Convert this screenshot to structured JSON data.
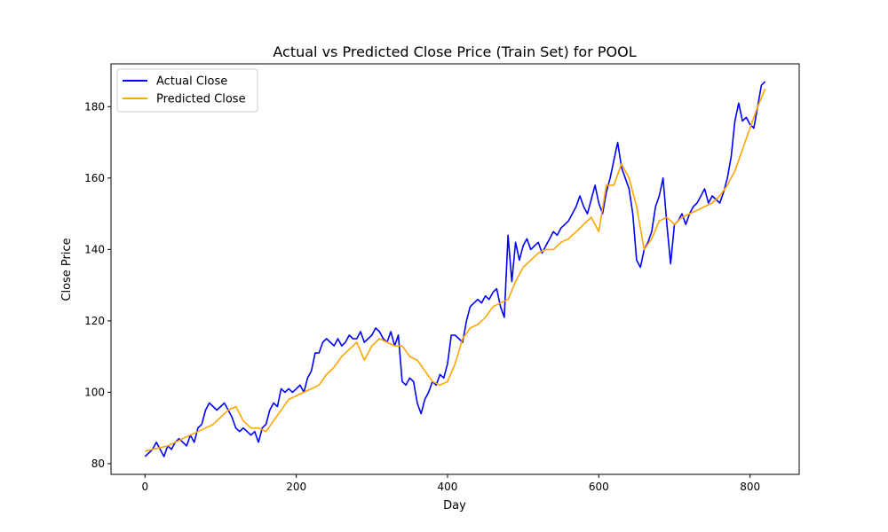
{
  "chart_data": {
    "type": "line",
    "title": "Actual vs Predicted Close Price (Train Set) for POOL",
    "xlabel": "Day",
    "ylabel": "Close Price",
    "xlim": [
      -45,
      865
    ],
    "ylim": [
      77,
      192
    ],
    "xticks": [
      0,
      200,
      400,
      600,
      800
    ],
    "yticks": [
      80,
      100,
      120,
      140,
      160,
      180
    ],
    "legend_position": "top-left",
    "grid": false,
    "series": [
      {
        "name": "Actual Close",
        "color": "#0000ff",
        "x": [
          0,
          5,
          10,
          15,
          20,
          25,
          30,
          35,
          40,
          45,
          50,
          55,
          60,
          65,
          70,
          75,
          80,
          85,
          90,
          95,
          100,
          105,
          110,
          115,
          120,
          125,
          130,
          135,
          140,
          145,
          150,
          155,
          160,
          165,
          170,
          175,
          180,
          185,
          190,
          195,
          200,
          205,
          210,
          215,
          220,
          225,
          230,
          235,
          240,
          245,
          250,
          255,
          260,
          265,
          270,
          275,
          280,
          285,
          290,
          295,
          300,
          305,
          310,
          315,
          320,
          325,
          330,
          335,
          340,
          345,
          350,
          355,
          360,
          365,
          370,
          375,
          380,
          385,
          390,
          395,
          400,
          405,
          410,
          415,
          420,
          425,
          430,
          435,
          440,
          445,
          450,
          455,
          460,
          465,
          470,
          475,
          480,
          485,
          490,
          495,
          500,
          505,
          510,
          515,
          520,
          525,
          530,
          535,
          540,
          545,
          550,
          555,
          560,
          565,
          570,
          575,
          580,
          585,
          590,
          595,
          600,
          605,
          610,
          615,
          620,
          625,
          630,
          635,
          640,
          645,
          650,
          655,
          660,
          665,
          670,
          675,
          680,
          685,
          690,
          695,
          700,
          705,
          710,
          715,
          720,
          725,
          730,
          735,
          740,
          745,
          750,
          755,
          760,
          765,
          770,
          775,
          780,
          785,
          790,
          795,
          800,
          805,
          810,
          815,
          820
        ],
        "values": [
          82,
          83,
          84,
          86,
          84,
          82,
          85,
          84,
          86,
          87,
          86,
          85,
          88,
          86,
          90,
          91,
          95,
          97,
          96,
          95,
          96,
          97,
          95,
          93,
          90,
          89,
          90,
          89,
          88,
          89,
          86,
          90,
          91,
          95,
          97,
          96,
          101,
          100,
          101,
          100,
          101,
          102,
          100,
          104,
          106,
          111,
          111,
          114,
          115,
          114,
          113,
          115,
          113,
          114,
          116,
          115,
          115,
          117,
          114,
          115,
          116,
          118,
          117,
          115,
          114,
          117,
          113,
          116,
          103,
          102,
          104,
          103,
          97,
          94,
          98,
          100,
          103,
          102,
          105,
          104,
          108,
          116,
          116,
          115,
          114,
          120,
          124,
          125,
          126,
          125,
          127,
          126,
          128,
          129,
          124,
          121,
          144,
          131,
          142,
          137,
          141,
          143,
          140,
          141,
          142,
          139,
          141,
          143,
          145,
          144,
          146,
          147,
          148,
          150,
          152,
          155,
          152,
          150,
          154,
          158,
          153,
          150,
          156,
          160,
          165,
          170,
          163,
          160,
          157,
          150,
          137,
          135,
          140,
          142,
          145,
          152,
          155,
          160,
          147,
          136,
          147,
          148,
          150,
          147,
          150,
          152,
          153,
          155,
          157,
          153,
          155,
          154,
          153,
          156,
          160,
          166,
          176,
          181,
          176,
          177,
          175,
          174,
          180,
          186,
          187
        ]
      },
      {
        "name": "Predicted Close",
        "color": "#ffa500",
        "x": [
          0,
          10,
          20,
          30,
          40,
          50,
          60,
          70,
          80,
          90,
          100,
          110,
          120,
          130,
          140,
          150,
          160,
          170,
          180,
          190,
          200,
          210,
          220,
          230,
          240,
          250,
          260,
          270,
          280,
          290,
          300,
          310,
          320,
          330,
          340,
          350,
          360,
          370,
          380,
          390,
          400,
          410,
          420,
          430,
          440,
          450,
          460,
          470,
          480,
          490,
          500,
          510,
          520,
          530,
          540,
          550,
          560,
          570,
          580,
          590,
          600,
          610,
          620,
          630,
          640,
          650,
          660,
          670,
          680,
          690,
          700,
          710,
          720,
          730,
          740,
          750,
          760,
          770,
          780,
          790,
          800,
          810,
          820
        ],
        "values": [
          83.5,
          84,
          84.5,
          85,
          86,
          87,
          88,
          89,
          90,
          91,
          93,
          95,
          96,
          92,
          90,
          90,
          89,
          92,
          95,
          98,
          99,
          100,
          101,
          102,
          105,
          107,
          110,
          112,
          114,
          109,
          113,
          115,
          114,
          113,
          113,
          110,
          109,
          106,
          103,
          102,
          103,
          108,
          115,
          118,
          119,
          121,
          124,
          125,
          126,
          131,
          135,
          137,
          139,
          140,
          140,
          142,
          143,
          145,
          147,
          149,
          145,
          158,
          158,
          164,
          160,
          152,
          140,
          143,
          148,
          149,
          147,
          149,
          150,
          151,
          152,
          153,
          155,
          158,
          162,
          168,
          174,
          180,
          185
        ]
      }
    ]
  }
}
